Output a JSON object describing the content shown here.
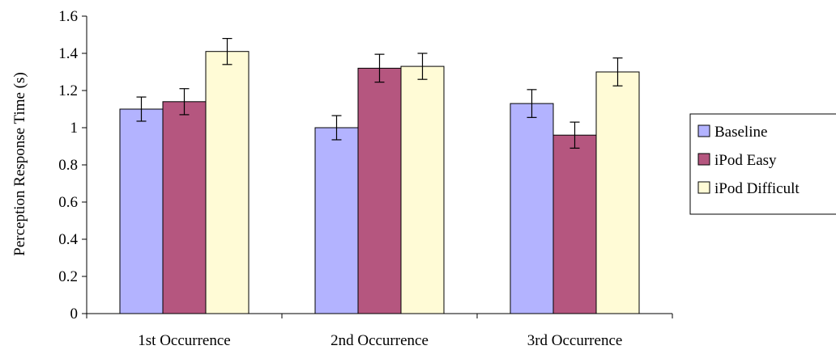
{
  "chart_data": {
    "type": "bar",
    "title": "",
    "xlabel": "",
    "ylabel": "Perception Response Time (s)",
    "categories": [
      "1st Occurrence",
      "2nd Occurrence",
      "3rd Occurrence"
    ],
    "ylim": [
      0,
      1.6
    ],
    "yticks": [
      0,
      0.2,
      0.4,
      0.6,
      0.8,
      1,
      1.2,
      1.4,
      1.6
    ],
    "ytick_labels": [
      "0",
      "0.2",
      "0.4",
      "0.6",
      "0.8",
      "1",
      "1.2",
      "1.4",
      "1.6"
    ],
    "grid": false,
    "legend_position": "right",
    "series": [
      {
        "name": "Baseline",
        "color": "#b3b3ff",
        "values": [
          1.1,
          1.0,
          1.13
        ],
        "errors": [
          0.065,
          0.065,
          0.075
        ]
      },
      {
        "name": "iPod Easy",
        "color": "#b5567f",
        "values": [
          1.14,
          1.32,
          0.96
        ],
        "errors": [
          0.07,
          0.075,
          0.07
        ]
      },
      {
        "name": "iPod Difficult",
        "color": "#fffbd6",
        "values": [
          1.41,
          1.33,
          1.3
        ],
        "errors": [
          0.07,
          0.07,
          0.075
        ]
      }
    ]
  }
}
